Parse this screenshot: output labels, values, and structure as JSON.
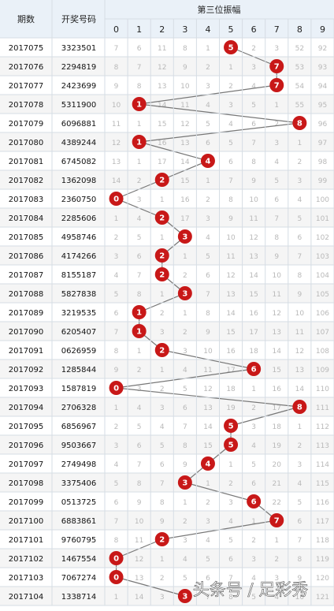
{
  "header": {
    "period_label": "期数",
    "number_label": "开奖号码",
    "group_label": "第三位振幅",
    "digits": [
      "0",
      "1",
      "2",
      "3",
      "4",
      "5",
      "6",
      "7",
      "8",
      "9"
    ]
  },
  "rows": [
    {
      "period": "2017075",
      "number": "3323501",
      "hit": 5,
      "cells": [
        "7",
        "6",
        "11",
        "8",
        "1",
        "5",
        "2",
        "3",
        "52",
        "92"
      ]
    },
    {
      "period": "2017076",
      "number": "2294819",
      "hit": 7,
      "cells": [
        "8",
        "7",
        "12",
        "9",
        "2",
        "1",
        "3",
        "7",
        "53",
        "93"
      ]
    },
    {
      "period": "2017077",
      "number": "2423699",
      "hit": 7,
      "cells": [
        "9",
        "8",
        "13",
        "10",
        "3",
        "2",
        "4",
        "7",
        "54",
        "94"
      ]
    },
    {
      "period": "2017078",
      "number": "5311900",
      "hit": 1,
      "cells": [
        "10",
        "1",
        "14",
        "11",
        "4",
        "3",
        "5",
        "1",
        "55",
        "95"
      ]
    },
    {
      "period": "2017079",
      "number": "6096881",
      "hit": 8,
      "cells": [
        "11",
        "1",
        "15",
        "12",
        "5",
        "4",
        "6",
        "2",
        "8",
        "96"
      ]
    },
    {
      "period": "2017080",
      "number": "4389244",
      "hit": 1,
      "cells": [
        "12",
        "1",
        "16",
        "13",
        "6",
        "5",
        "7",
        "3",
        "1",
        "97"
      ]
    },
    {
      "period": "2017081",
      "number": "6745082",
      "hit": 4,
      "cells": [
        "13",
        "1",
        "17",
        "14",
        "4",
        "6",
        "8",
        "4",
        "2",
        "98"
      ]
    },
    {
      "period": "2017082",
      "number": "1362098",
      "hit": 2,
      "cells": [
        "14",
        "2",
        "2",
        "15",
        "1",
        "7",
        "9",
        "5",
        "3",
        "99"
      ]
    },
    {
      "period": "2017083",
      "number": "2360750",
      "hit": 0,
      "cells": [
        "0",
        "3",
        "1",
        "16",
        "2",
        "8",
        "10",
        "6",
        "4",
        "100"
      ]
    },
    {
      "period": "2017084",
      "number": "2285606",
      "hit": 2,
      "cells": [
        "1",
        "4",
        "2",
        "17",
        "3",
        "9",
        "11",
        "7",
        "5",
        "101"
      ]
    },
    {
      "period": "2017085",
      "number": "4958746",
      "hit": 3,
      "cells": [
        "2",
        "5",
        "1",
        "3",
        "4",
        "10",
        "12",
        "8",
        "6",
        "102"
      ]
    },
    {
      "period": "2017086",
      "number": "4174266",
      "hit": 2,
      "cells": [
        "3",
        "6",
        "2",
        "1",
        "5",
        "11",
        "13",
        "9",
        "7",
        "103"
      ]
    },
    {
      "period": "2017087",
      "number": "8155187",
      "hit": 2,
      "cells": [
        "4",
        "7",
        "2",
        "2",
        "6",
        "12",
        "14",
        "10",
        "8",
        "104"
      ]
    },
    {
      "period": "2017088",
      "number": "5827838",
      "hit": 3,
      "cells": [
        "5",
        "8",
        "1",
        "3",
        "7",
        "13",
        "15",
        "11",
        "9",
        "105"
      ]
    },
    {
      "period": "2017089",
      "number": "3219535",
      "hit": 1,
      "cells": [
        "6",
        "1",
        "2",
        "1",
        "8",
        "14",
        "16",
        "12",
        "10",
        "106"
      ]
    },
    {
      "period": "2017090",
      "number": "6205407",
      "hit": 1,
      "cells": [
        "7",
        "1",
        "3",
        "2",
        "9",
        "15",
        "17",
        "13",
        "11",
        "107"
      ]
    },
    {
      "period": "2017091",
      "number": "0626959",
      "hit": 2,
      "cells": [
        "8",
        "1",
        "2",
        "3",
        "10",
        "16",
        "18",
        "14",
        "12",
        "108"
      ]
    },
    {
      "period": "2017092",
      "number": "1285844",
      "hit": 6,
      "cells": [
        "9",
        "2",
        "1",
        "4",
        "11",
        "17",
        "6",
        "15",
        "13",
        "109"
      ]
    },
    {
      "period": "2017093",
      "number": "1587819",
      "hit": 0,
      "cells": [
        "0",
        "3",
        "2",
        "5",
        "12",
        "18",
        "1",
        "16",
        "14",
        "110"
      ]
    },
    {
      "period": "2017094",
      "number": "2706328",
      "hit": 8,
      "cells": [
        "1",
        "4",
        "3",
        "6",
        "13",
        "19",
        "2",
        "17",
        "8",
        "111"
      ]
    },
    {
      "period": "2017095",
      "number": "6856967",
      "hit": 5,
      "cells": [
        "2",
        "5",
        "4",
        "7",
        "14",
        "5",
        "3",
        "18",
        "1",
        "112"
      ]
    },
    {
      "period": "2017096",
      "number": "9503667",
      "hit": 5,
      "cells": [
        "3",
        "6",
        "5",
        "8",
        "15",
        "5",
        "4",
        "19",
        "2",
        "113"
      ]
    },
    {
      "period": "2017097",
      "number": "2749498",
      "hit": 4,
      "cells": [
        "4",
        "7",
        "6",
        "9",
        "4",
        "1",
        "5",
        "20",
        "3",
        "114"
      ]
    },
    {
      "period": "2017098",
      "number": "3375406",
      "hit": 3,
      "cells": [
        "5",
        "8",
        "7",
        "3",
        "1",
        "2",
        "6",
        "21",
        "4",
        "115"
      ]
    },
    {
      "period": "2017099",
      "number": "0513725",
      "hit": 6,
      "cells": [
        "6",
        "9",
        "8",
        "1",
        "2",
        "3",
        "6",
        "22",
        "5",
        "116"
      ]
    },
    {
      "period": "2017100",
      "number": "6883861",
      "hit": 7,
      "cells": [
        "7",
        "10",
        "9",
        "2",
        "3",
        "4",
        "1",
        "7",
        "6",
        "117"
      ]
    },
    {
      "period": "2017101",
      "number": "9760795",
      "hit": 2,
      "cells": [
        "8",
        "11",
        "2",
        "3",
        "4",
        "5",
        "2",
        "1",
        "7",
        "118"
      ]
    },
    {
      "period": "2017102",
      "number": "1467554",
      "hit": 0,
      "cells": [
        "0",
        "12",
        "1",
        "4",
        "5",
        "6",
        "3",
        "2",
        "8",
        "119"
      ]
    },
    {
      "period": "2017103",
      "number": "7067274",
      "hit": 0,
      "cells": [
        "0",
        "13",
        "2",
        "5",
        "6",
        "7",
        "4",
        "3",
        "9",
        "120"
      ]
    },
    {
      "period": "2017104",
      "number": "1338714",
      "hit": 3,
      "cells": [
        "1",
        "14",
        "3",
        "3",
        "7",
        "8",
        "5",
        "4",
        "10",
        "121"
      ]
    }
  ],
  "watermark": "头条号 / 足彩秀",
  "colors": {
    "ball": "#c81818",
    "line": "#777777",
    "header_bg": "#eaf1f8",
    "row_alt": "#f5f5f5",
    "grid": "#d6dde4"
  }
}
